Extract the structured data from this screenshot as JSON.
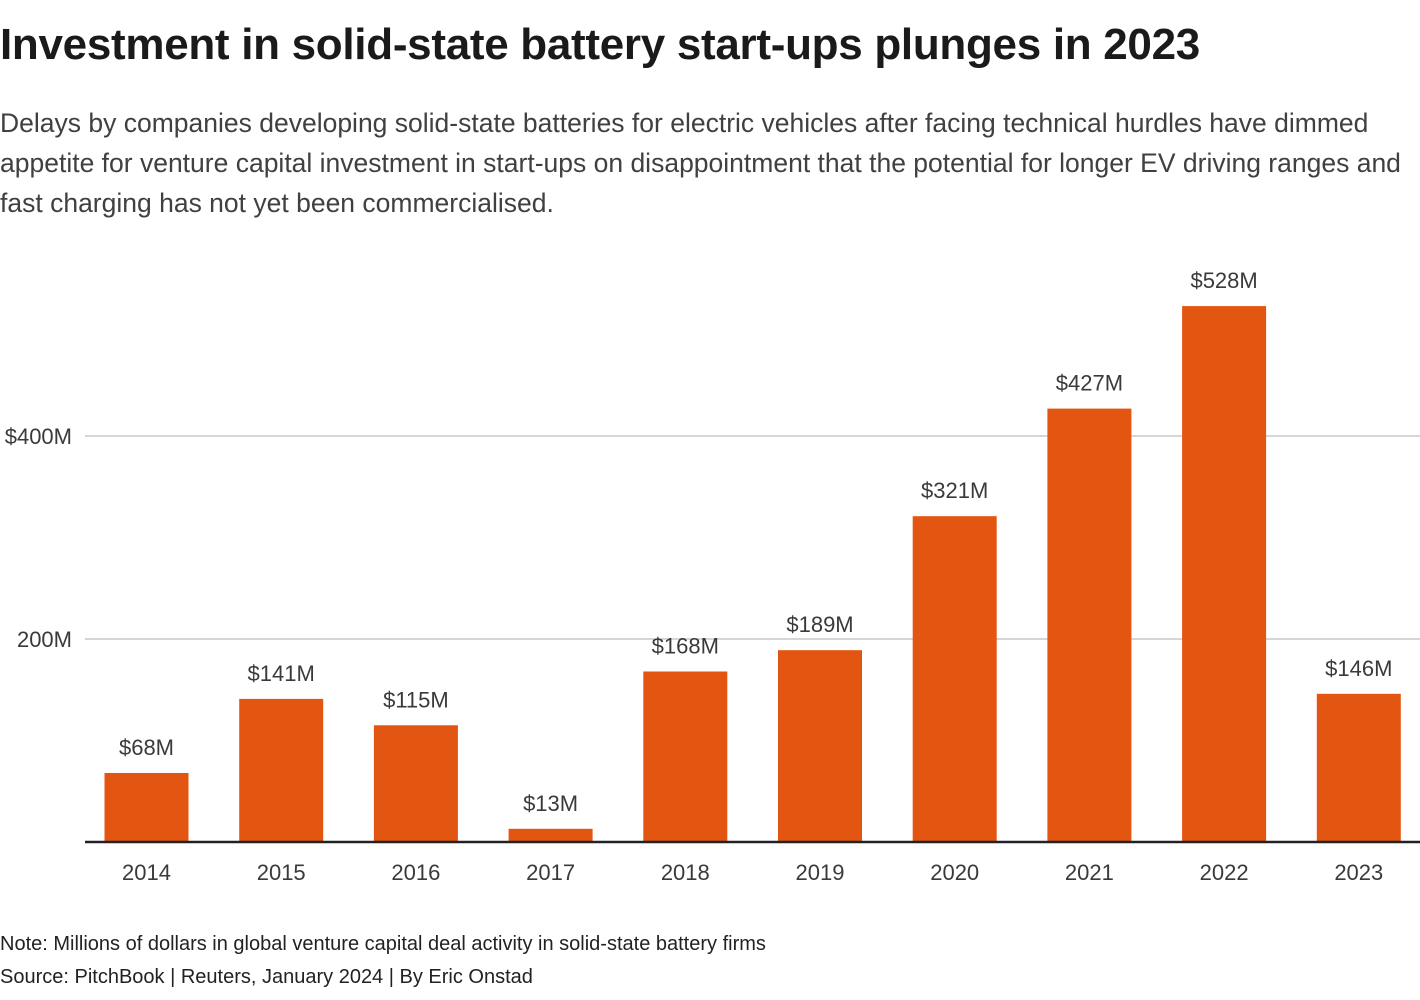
{
  "title": "Investment in solid-state battery start-ups plunges in 2023",
  "subtitle": "Delays by companies developing solid-state batteries for electric vehicles after facing technical hurdles have dimmed appetite for venture capital investment in start-ups on disappointment that the potential for longer EV driving ranges and fast charging has not yet been commercialised.",
  "note": "Note: Millions of dollars in global venture capital deal activity in solid-state battery firms",
  "source": "Source: PitchBook | Reuters, January 2024 | By Eric Onstad",
  "colors": {
    "bar": "#e35612",
    "gridline": "#c8c8c8",
    "axis": "#222222",
    "label": "#3a3a3a"
  },
  "chart_data": {
    "type": "bar",
    "title": "Investment in solid-state battery start-ups plunges in 2023",
    "xlabel": "",
    "ylabel": "",
    "categories": [
      "2014",
      "2015",
      "2016",
      "2017",
      "2018",
      "2019",
      "2020",
      "2021",
      "2022",
      "2023"
    ],
    "values": [
      68,
      141,
      115,
      13,
      168,
      189,
      321,
      427,
      528,
      146
    ],
    "data_labels": [
      "$68M",
      "$141M",
      "$115M",
      "$13M",
      "$168M",
      "$189M",
      "$321M",
      "$427M",
      "$528M",
      "$146M"
    ],
    "unit": "millions of US dollars",
    "ylim": [
      0,
      528
    ],
    "y_ticks": [
      {
        "value": 200,
        "label": "200M"
      },
      {
        "value": 400,
        "label": "$400M"
      }
    ],
    "grid": true,
    "legend": "none"
  }
}
